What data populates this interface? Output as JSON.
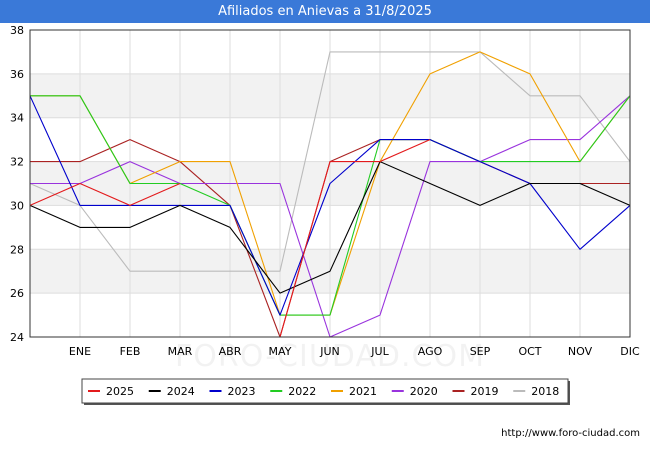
{
  "chart_data": {
    "type": "line",
    "title": "Afiliados en Anievas a 31/8/2025",
    "categories": [
      "",
      "ENE",
      "FEB",
      "MAR",
      "ABR",
      "MAY",
      "JUN",
      "JUL",
      "AGO",
      "SEP",
      "OCT",
      "NOV",
      "DIC"
    ],
    "ylim": [
      24,
      38
    ],
    "yticks": [
      24,
      26,
      28,
      30,
      32,
      34,
      36,
      38
    ],
    "grid": true,
    "legend_position": "bottom",
    "series": [
      {
        "name": "2025",
        "color": "#e31a1c",
        "values": [
          30,
          31,
          30,
          31,
          null,
          24,
          32,
          32,
          33,
          null,
          null,
          null,
          null
        ]
      },
      {
        "name": "2024",
        "color": "#000000",
        "values": [
          30,
          29,
          29,
          30,
          29,
          26,
          27,
          32,
          31,
          30,
          31,
          31,
          30
        ]
      },
      {
        "name": "2023",
        "color": "#0000cc",
        "values": [
          35,
          30,
          30,
          30,
          30,
          25,
          31,
          33,
          33,
          32,
          31,
          28,
          30
        ]
      },
      {
        "name": "2022",
        "color": "#22cc22",
        "values": [
          35,
          35,
          31,
          31,
          30,
          25,
          25,
          33,
          33,
          32,
          32,
          32,
          35
        ]
      },
      {
        "name": "2021",
        "color": "#f0a000",
        "values": [
          35,
          35,
          31,
          32,
          32,
          25,
          25,
          32,
          36,
          37,
          36,
          32,
          35
        ]
      },
      {
        "name": "2020",
        "color": "#9933dd",
        "values": [
          31,
          31,
          32,
          31,
          31,
          31,
          24,
          25,
          32,
          32,
          33,
          33,
          35
        ]
      },
      {
        "name": "2019",
        "color": "#aa2222",
        "values": [
          32,
          32,
          33,
          32,
          30,
          24,
          32,
          33,
          33,
          32,
          31,
          31,
          31
        ]
      },
      {
        "name": "2018",
        "color": "#bbbbbb",
        "values": [
          31,
          30,
          27,
          27,
          27,
          27,
          37,
          37,
          37,
          37,
          35,
          35,
          32
        ]
      }
    ]
  },
  "watermark": "FORO-CIUDAD.COM",
  "source_url": "http://www.foro-ciudad.com"
}
